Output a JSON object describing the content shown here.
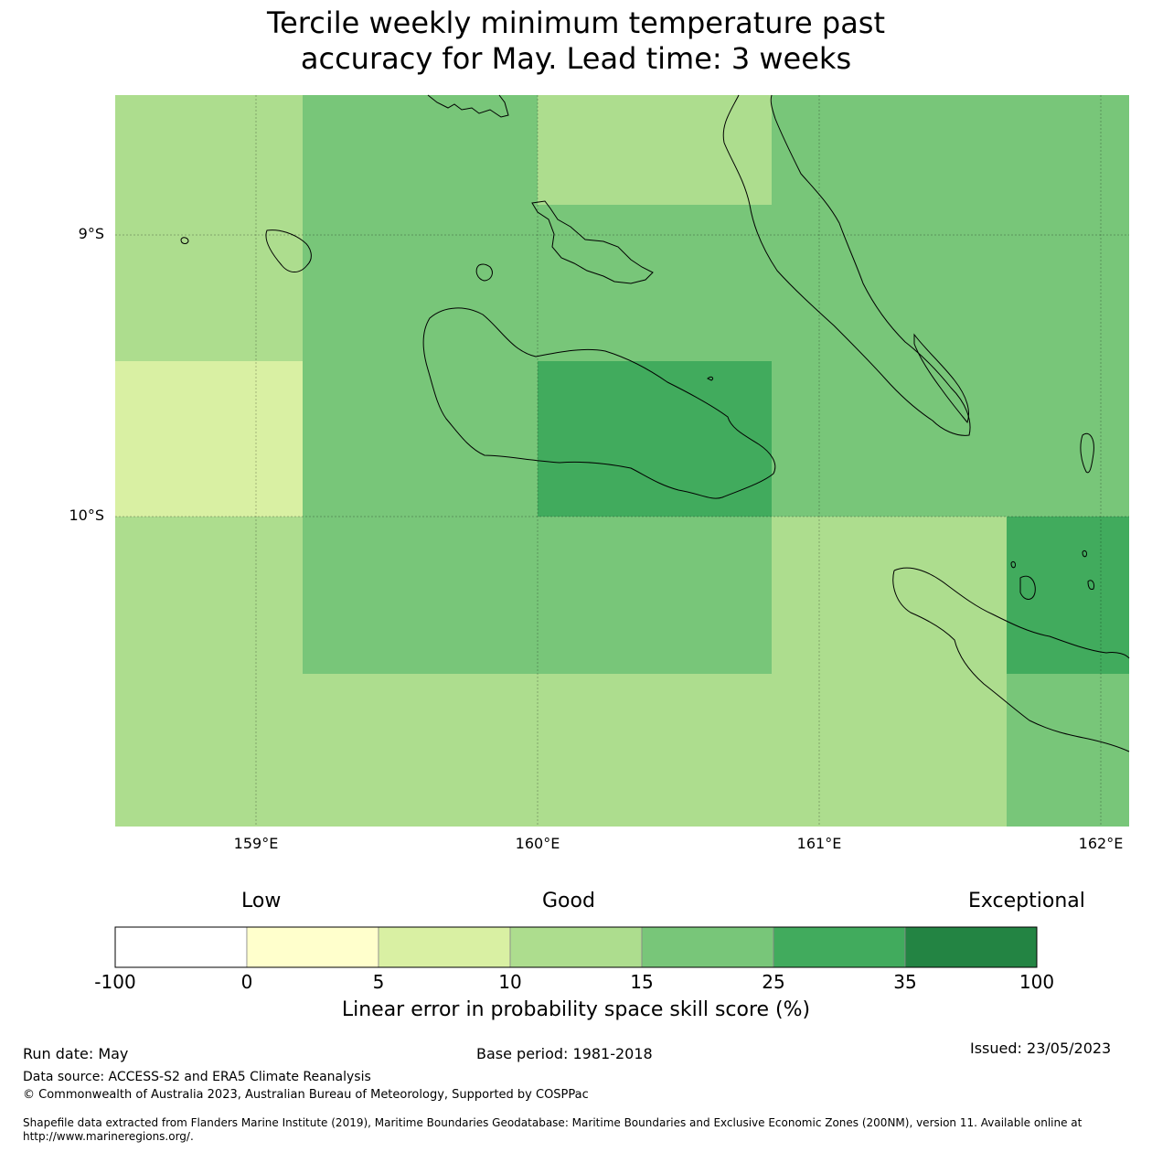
{
  "title": {
    "line1": "Tercile weekly minimum temperature past",
    "line2": "accuracy for May. Lead time: 3 weeks"
  },
  "axes": {
    "lat_labels": [
      "9°S",
      "10°S"
    ],
    "lon_labels": [
      "159°E",
      "160°E",
      "161°E",
      "162°E"
    ]
  },
  "colorbar": {
    "words": {
      "low": "Low",
      "good": "Good",
      "exceptional": "Exceptional"
    },
    "ticks": [
      "-100",
      "0",
      "5",
      "10",
      "15",
      "25",
      "35",
      "100"
    ],
    "colors": [
      "#ffffff",
      "#ffffcc",
      "#d9f0a3",
      "#addd8e",
      "#78c679",
      "#41ab5d",
      "#238443"
    ],
    "label": "Linear error in probability space skill score (%)"
  },
  "map_cells": [
    {
      "col": 0,
      "row": 0,
      "cls": 3
    },
    {
      "col": 1,
      "row": 0,
      "cls": 4
    },
    {
      "col": 2,
      "row": 0,
      "cls": 3
    },
    {
      "col": 3,
      "row": 0,
      "cls": 4
    },
    {
      "col": 4,
      "row": 0,
      "cls": 4
    },
    {
      "col": 0,
      "row": 1,
      "cls": 3
    },
    {
      "col": 1,
      "row": 1,
      "cls": 4
    },
    {
      "col": 2,
      "row": 1,
      "cls": 4
    },
    {
      "col": 3,
      "row": 1,
      "cls": 4
    },
    {
      "col": 4,
      "row": 1,
      "cls": 4
    },
    {
      "col": 0,
      "row": 2,
      "cls": 2
    },
    {
      "col": 1,
      "row": 2,
      "cls": 4
    },
    {
      "col": 2,
      "row": 2,
      "cls": 5
    },
    {
      "col": 3,
      "row": 2,
      "cls": 4
    },
    {
      "col": 4,
      "row": 2,
      "cls": 4
    },
    {
      "col": 0,
      "row": 3,
      "cls": 3
    },
    {
      "col": 1,
      "row": 3,
      "cls": 4
    },
    {
      "col": 2,
      "row": 3,
      "cls": 4
    },
    {
      "col": 3,
      "row": 3,
      "cls": 3
    },
    {
      "col": 4,
      "row": 3,
      "cls": 5
    },
    {
      "col": 0,
      "row": 4,
      "cls": 3
    },
    {
      "col": 1,
      "row": 4,
      "cls": 3
    },
    {
      "col": 2,
      "row": 4,
      "cls": 3
    },
    {
      "col": 3,
      "row": 4,
      "cls": 3
    },
    {
      "col": 4,
      "row": 4,
      "cls": 4
    }
  ],
  "footer": {
    "run_date": "Run date: May",
    "base_period": "Base period: 1981-2018",
    "issued": "Issued: 23/05/2023",
    "data_source": "Data source: ACCESS-S2 and ERA5 Climate Reanalysis",
    "copyright": "© Commonwealth of Australia 2023, Australian Bureau of Meteorology, Supported by COSPPac",
    "shapefile_1": "Shapefile data extracted from Flanders Marine Institute (2019), Maritime Boundaries Geodatabase: Maritime Boundaries and Exclusive Economic Zones (200NM), version 11. Available online at",
    "shapefile_2": "http://www.marineregions.org/."
  }
}
